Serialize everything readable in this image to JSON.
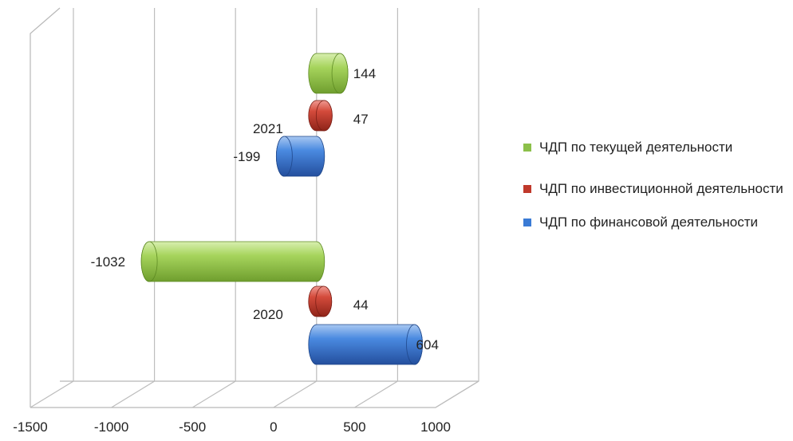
{
  "chart_data": {
    "type": "bar",
    "orientation": "horizontal",
    "style": "3d-cylinder",
    "categories": [
      "2020",
      "2021"
    ],
    "series": [
      {
        "name": "ЧДП по текущей деятельности",
        "values": [
          -1032,
          144
        ],
        "color": "#8cc04a"
      },
      {
        "name": "ЧДП по инвестиционной деятельности",
        "values": [
          44,
          47
        ],
        "color": "#c0392b"
      },
      {
        "name": "ЧДП по финансовой деятельности",
        "values": [
          604,
          -199
        ],
        "color": "#3a7bd5"
      }
    ],
    "xticks": [
      "-1500",
      "-1000",
      "-500",
      "0",
      "500",
      "1000"
    ],
    "xlim": [
      -1500,
      1000
    ],
    "grid": true,
    "legend_position": "right"
  }
}
